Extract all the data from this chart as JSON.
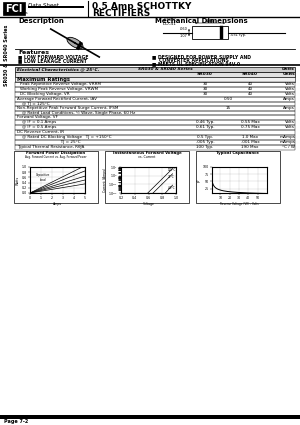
{
  "title_main": "0.5 Amp SCHOTTKY\nRECTIFIERS",
  "company": "FCI",
  "data_sheet_text": "Data Sheet",
  "series_text": "SR030 & SR040 Series",
  "page_text": "Page 7-2",
  "description_title": "Description",
  "mech_dim_title": "Mechanical Dimensions",
  "features_left": [
    "LOW FORWARD VOLTAGE",
    "LOW LEAKAGE CURRENT"
  ],
  "features_right": [
    "DESIGNED FOR POWER SUPPLY AND CONVERTER APPLICATIONS",
    "MEETS UL SPECIFICATION 94V-0"
  ],
  "jedec_line1": "JEDEC",
  "jedec_line2": "DO-41",
  "mech_d1": ".335",
  "mech_d2": ".185",
  "mech_d3": ".060",
  "mech_d4": ".107",
  "mech_d5": ".031 typ.",
  "table_title": "Electrical Characteristics @ 25°C.",
  "table_series": "SR030 & SR040 Series",
  "table_units": "Units",
  "col_sr030": "SR030",
  "col_sr040": "SR040",
  "max_ratings_label": "Maximum Ratings",
  "rows": [
    [
      "Peak Repetitive Reverse Voltage, VRRM",
      "30",
      "40",
      "Volts"
    ],
    [
      "Working Peak Reverse Voltage, VRWM",
      "30",
      "40",
      "Volts"
    ],
    [
      "DC Blocking Voltage, VR",
      "30",
      "40",
      "Volts"
    ]
  ],
  "avg_fwd_label": "Average Forward Rectified Current, IAV",
  "avg_fwd_val": "0.50",
  "avg_fwd_unit": "Amps",
  "avg_fwd_sub": "@ TJ = 125°C",
  "non_rep_label": "Non-Repetitive Peak Forward Surge Current, IFSM",
  "non_rep_val": "15",
  "non_rep_unit": "Amps",
  "non_rep_sub": "@ Rated Load Conditions, ½ Wave, Single Phase, 60 Hz",
  "fwd_v_label": "Forward Voltage, VF",
  "fwd_v_rows": [
    [
      "@ IF = 0.1 Amps",
      "0.46 Typ.",
      "0.55 Max",
      "Volts"
    ],
    [
      "@ IF = 0.5 Amps",
      "0.61 Typ.",
      "0.75 Max",
      "Volts"
    ]
  ],
  "dc_rev_label": "DC Reverse Current, IR",
  "dc_rev_rows": [
    [
      "@ Rated DC Blocking Voltage   TJ = +150°C",
      "0.5 Typ.",
      "1.0 Max",
      "mAmps"
    ],
    [
      "                               TJ = 25°C",
      ".005 Typ.",
      ".001 Max",
      "mAmps"
    ]
  ],
  "thermal_label": "Typical Thermal Resistance, RθJA",
  "thermal_typ": "100 Typ.",
  "thermal_max": "190 Max",
  "thermal_unit": "°C / W",
  "g1_title": "Forward Power Dissipation",
  "g1_sub": "Avg. Forward Current vs. Avg. Forward Power",
  "g2_title": "Instantaneous Forward Voltage",
  "g2_sub": "vs. Current",
  "g3_title": "Typical Capacitance",
  "bg_color": "#ffffff"
}
